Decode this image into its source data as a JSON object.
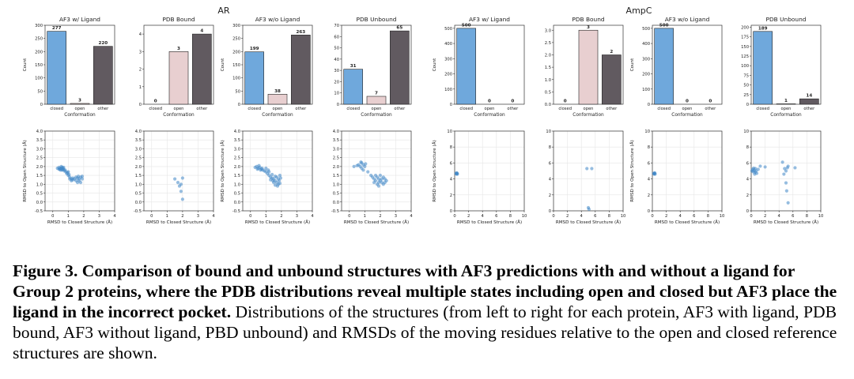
{
  "chart_data": [
    {
      "type": "bar",
      "group": "AR",
      "title": "AF3 w/ Ligand",
      "categories": [
        "closed",
        "open",
        "other"
      ],
      "values": [
        277,
        3,
        220
      ],
      "ylim": [
        0,
        300
      ],
      "yticks": [
        0,
        50,
        100,
        150,
        200,
        250,
        300
      ],
      "ylabel": "Count",
      "xlabel": "Conformation"
    },
    {
      "type": "bar",
      "group": "AR",
      "title": "PDB Bound",
      "categories": [
        "closed",
        "open",
        "other"
      ],
      "values": [
        0,
        3,
        4
      ],
      "ylim": [
        0,
        4.5
      ],
      "yticks": [
        0,
        1,
        2,
        3,
        4
      ],
      "ylabel": "",
      "xlabel": "Conformation"
    },
    {
      "type": "bar",
      "group": "AR",
      "title": "AF3 w/o Ligand",
      "categories": [
        "closed",
        "open",
        "other"
      ],
      "values": [
        199,
        38,
        263
      ],
      "ylim": [
        0,
        300
      ],
      "yticks": [
        0,
        50,
        100,
        150,
        200,
        250,
        300
      ],
      "ylabel": "Count",
      "xlabel": "Conformation"
    },
    {
      "type": "bar",
      "group": "AR",
      "title": "PDB Unbound",
      "categories": [
        "closed",
        "open",
        "other"
      ],
      "values": [
        31,
        7,
        65
      ],
      "ylim": [
        0,
        70
      ],
      "yticks": [
        0,
        10,
        20,
        30,
        40,
        50,
        60,
        70
      ],
      "ylabel": "",
      "xlabel": "Conformation"
    },
    {
      "type": "bar",
      "group": "AmpC",
      "title": "AF3 w/ Ligand",
      "categories": [
        "closed",
        "open",
        "other"
      ],
      "values": [
        500,
        0,
        0
      ],
      "ylim": [
        0,
        520
      ],
      "yticks": [
        0,
        100,
        200,
        300,
        400,
        500
      ],
      "ylabel": "Count",
      "xlabel": "Conformation"
    },
    {
      "type": "bar",
      "group": "AmpC",
      "title": "PDB Bound",
      "categories": [
        "closed",
        "open",
        "other"
      ],
      "values": [
        0,
        3,
        2
      ],
      "ylim": [
        0,
        3.2
      ],
      "yticks": [
        0.0,
        0.5,
        1.0,
        1.5,
        2.0,
        2.5,
        3.0
      ],
      "ylabel": "",
      "xlabel": "Conformation"
    },
    {
      "type": "bar",
      "group": "AmpC",
      "title": "AF3 w/o Ligand",
      "categories": [
        "closed",
        "open",
        "other"
      ],
      "values": [
        500,
        0,
        0
      ],
      "ylim": [
        0,
        520
      ],
      "yticks": [
        0,
        100,
        200,
        300,
        400,
        500
      ],
      "ylabel": "Count",
      "xlabel": "Conformation"
    },
    {
      "type": "bar",
      "group": "AmpC",
      "title": "PDB Unbound",
      "categories": [
        "closed",
        "open",
        "other"
      ],
      "values": [
        189,
        1,
        14
      ],
      "ylim": [
        0,
        205
      ],
      "yticks": [
        0,
        25,
        50,
        75,
        100,
        125,
        150,
        175,
        200
      ],
      "ylabel": "",
      "xlabel": "Conformation"
    },
    {
      "type": "scatter",
      "group": "AR",
      "xlim": [
        -0.5,
        4
      ],
      "ylim": [
        -0.5,
        4
      ],
      "xticks": [
        0,
        1,
        2,
        3,
        4
      ],
      "yticks": [
        -0.5,
        0.0,
        0.5,
        1.0,
        1.5,
        2.0,
        2.5,
        3.0,
        3.5,
        4.0
      ],
      "xlabel": "RMSD to Closed Structure (Å)",
      "ylabel": "RMSD to Open Structure (Å)",
      "points": [
        [
          0.3,
          1.9
        ],
        [
          0.4,
          1.95
        ],
        [
          0.45,
          1.85
        ],
        [
          0.5,
          1.9
        ],
        [
          0.55,
          2.0
        ],
        [
          0.6,
          1.8
        ],
        [
          0.65,
          1.9
        ],
        [
          0.7,
          1.85
        ],
        [
          0.75,
          1.75
        ],
        [
          0.8,
          1.8
        ],
        [
          0.5,
          1.8
        ],
        [
          0.6,
          1.95
        ],
        [
          0.7,
          1.95
        ],
        [
          0.4,
          1.85
        ],
        [
          0.85,
          1.7
        ],
        [
          0.9,
          1.6
        ],
        [
          0.95,
          1.65
        ],
        [
          1.0,
          1.5
        ],
        [
          1.05,
          1.55
        ],
        [
          1.1,
          1.4
        ],
        [
          1.0,
          1.7
        ],
        [
          1.1,
          1.3
        ],
        [
          1.2,
          1.3
        ],
        [
          1.3,
          1.25
        ],
        [
          1.4,
          1.3
        ],
        [
          1.5,
          1.2
        ],
        [
          1.6,
          1.35
        ],
        [
          1.7,
          1.3
        ],
        [
          1.8,
          1.4
        ],
        [
          1.7,
          1.2
        ],
        [
          1.6,
          1.1
        ],
        [
          1.9,
          1.3
        ],
        [
          1.8,
          1.1
        ],
        [
          1.5,
          1.4
        ],
        [
          1.3,
          1.35
        ],
        [
          1.2,
          1.2
        ],
        [
          1.9,
          1.45
        ],
        [
          1.65,
          1.45
        ],
        [
          0.55,
          1.88
        ],
        [
          0.65,
          1.82
        ]
      ]
    },
    {
      "type": "scatter",
      "group": "AR",
      "xlim": [
        -0.5,
        4
      ],
      "ylim": [
        -0.5,
        4
      ],
      "xticks": [
        0,
        1,
        2,
        3,
        4
      ],
      "yticks": [
        -0.5,
        0.0,
        0.5,
        1.0,
        1.5,
        2.0,
        2.5,
        3.0,
        3.5,
        4.0
      ],
      "xlabel": "RMSD to Closed Structure (Å)",
      "ylabel": "",
      "points": [
        [
          1.5,
          1.3
        ],
        [
          1.7,
          1.1
        ],
        [
          1.8,
          0.9
        ],
        [
          1.9,
          1.0
        ],
        [
          2.0,
          1.35
        ],
        [
          1.9,
          0.6
        ],
        [
          2.0,
          0.15
        ]
      ]
    },
    {
      "type": "scatter",
      "group": "AR",
      "xlim": [
        -0.5,
        4
      ],
      "ylim": [
        -0.5,
        4
      ],
      "xticks": [
        0,
        1,
        2,
        3,
        4
      ],
      "yticks": [
        -0.5,
        0.0,
        0.5,
        1.0,
        1.5,
        2.0,
        2.5,
        3.0,
        3.5,
        4.0
      ],
      "xlabel": "RMSD to Closed Structure (Å)",
      "ylabel": "RMSD to Open Structure (Å)",
      "points": [
        [
          0.3,
          1.95
        ],
        [
          0.4,
          2.0
        ],
        [
          0.5,
          1.9
        ],
        [
          0.6,
          1.95
        ],
        [
          0.7,
          1.85
        ],
        [
          0.8,
          1.8
        ],
        [
          0.9,
          1.75
        ],
        [
          1.0,
          1.7
        ],
        [
          0.45,
          1.85
        ],
        [
          0.55,
          2.05
        ],
        [
          0.65,
          1.8
        ],
        [
          0.75,
          1.9
        ],
        [
          1.1,
          1.6
        ],
        [
          1.2,
          1.5
        ],
        [
          1.3,
          1.4
        ],
        [
          1.4,
          1.35
        ],
        [
          1.5,
          1.3
        ],
        [
          1.6,
          1.2
        ],
        [
          1.7,
          1.1
        ],
        [
          1.8,
          1.0
        ],
        [
          1.9,
          1.05
        ],
        [
          1.6,
          0.95
        ],
        [
          1.5,
          1.1
        ],
        [
          1.7,
          1.4
        ],
        [
          1.8,
          1.3
        ],
        [
          1.9,
          1.5
        ],
        [
          1.85,
          1.2
        ],
        [
          1.4,
          1.55
        ],
        [
          1.3,
          1.25
        ],
        [
          1.2,
          1.7
        ],
        [
          1.6,
          1.45
        ],
        [
          1.75,
          0.9
        ],
        [
          1.95,
          1.35
        ],
        [
          1.45,
          1.2
        ],
        [
          1.0,
          1.9
        ],
        [
          1.15,
          1.8
        ]
      ]
    },
    {
      "type": "scatter",
      "group": "AR",
      "xlim": [
        -0.5,
        4
      ],
      "ylim": [
        -0.5,
        4
      ],
      "xticks": [
        0,
        1,
        2,
        3,
        4
      ],
      "yticks": [
        -0.5,
        0.0,
        0.5,
        1.0,
        1.5,
        2.0,
        2.5,
        3.0,
        3.5,
        4.0
      ],
      "xlabel": "RMSD to Closed Structure (Å)",
      "ylabel": "",
      "points": [
        [
          0.3,
          2.0
        ],
        [
          0.5,
          2.05
        ],
        [
          0.6,
          2.1
        ],
        [
          0.7,
          2.0
        ],
        [
          0.8,
          2.2
        ],
        [
          0.9,
          2.1
        ],
        [
          1.0,
          2.0
        ],
        [
          0.8,
          1.9
        ],
        [
          0.9,
          1.8
        ],
        [
          1.2,
          1.7
        ],
        [
          1.4,
          1.5
        ],
        [
          1.5,
          1.4
        ],
        [
          1.6,
          1.3
        ],
        [
          1.7,
          1.2
        ],
        [
          1.8,
          1.4
        ],
        [
          1.9,
          1.3
        ],
        [
          2.0,
          1.2
        ],
        [
          2.1,
          1.1
        ],
        [
          2.2,
          1.0
        ],
        [
          2.3,
          1.3
        ],
        [
          1.8,
          1.0
        ],
        [
          1.9,
          0.9
        ],
        [
          2.0,
          1.5
        ],
        [
          2.2,
          1.4
        ],
        [
          1.7,
          1.5
        ],
        [
          1.6,
          1.1
        ],
        [
          2.1,
          1.3
        ],
        [
          2.3,
          1.1
        ],
        [
          2.4,
          1.2
        ],
        [
          1.9,
          1.1
        ],
        [
          0.75,
          2.25
        ],
        [
          1.05,
          2.15
        ]
      ]
    },
    {
      "type": "scatter",
      "group": "AmpC",
      "xlim": [
        0,
        10
      ],
      "ylim": [
        0,
        10
      ],
      "xticks": [
        0,
        2,
        4,
        6,
        8,
        10
      ],
      "yticks": [
        0,
        2,
        4,
        6,
        8,
        10
      ],
      "xlabel": "RMSD to Closed Structure (Å)",
      "ylabel": "RMSD to Open Structure (Å)",
      "points": [
        [
          0.2,
          4.7
        ],
        [
          0.3,
          4.65
        ],
        [
          0.35,
          4.7
        ],
        [
          0.4,
          4.6
        ],
        [
          0.25,
          4.6
        ],
        [
          0.3,
          4.75
        ]
      ]
    },
    {
      "type": "scatter",
      "group": "AmpC",
      "xlim": [
        0,
        10
      ],
      "ylim": [
        0,
        10
      ],
      "xticks": [
        0,
        2,
        4,
        6,
        8,
        10
      ],
      "yticks": [
        0,
        2,
        4,
        6,
        8,
        10
      ],
      "xlabel": "RMSD to Closed Structure (Å)",
      "ylabel": "",
      "points": [
        [
          4.8,
          5.3
        ],
        [
          5.5,
          5.3
        ],
        [
          5.0,
          0.4
        ],
        [
          5.1,
          0.2
        ]
      ]
    },
    {
      "type": "scatter",
      "group": "AmpC",
      "xlim": [
        0,
        10
      ],
      "ylim": [
        0,
        10
      ],
      "xticks": [
        0,
        2,
        4,
        6,
        8,
        10
      ],
      "yticks": [
        0,
        2,
        4,
        6,
        8,
        10
      ],
      "xlabel": "RMSD to Closed Structure (Å)",
      "ylabel": "RMSD to Open Structure (Å)",
      "points": [
        [
          0.2,
          4.7
        ],
        [
          0.3,
          4.65
        ],
        [
          0.35,
          4.75
        ],
        [
          0.4,
          4.6
        ],
        [
          0.25,
          4.6
        ],
        [
          0.3,
          4.7
        ]
      ]
    },
    {
      "type": "scatter",
      "group": "AmpC",
      "xlim": [
        0,
        10
      ],
      "ylim": [
        0,
        10
      ],
      "xticks": [
        0,
        2,
        4,
        6,
        8,
        10
      ],
      "yticks": [
        0,
        2,
        4,
        6,
        8,
        10
      ],
      "xlabel": "RMSD to Closed Structure (Å)",
      "ylabel": "",
      "points": [
        [
          0.1,
          5.0
        ],
        [
          0.2,
          5.2
        ],
        [
          0.3,
          4.9
        ],
        [
          0.4,
          5.1
        ],
        [
          0.5,
          4.6
        ],
        [
          0.6,
          5.3
        ],
        [
          0.7,
          5.0
        ],
        [
          0.8,
          4.7
        ],
        [
          1.0,
          5.2
        ],
        [
          1.3,
          5.6
        ],
        [
          2.0,
          5.5
        ],
        [
          4.5,
          6.1
        ],
        [
          4.8,
          5.3
        ],
        [
          5.0,
          5.0
        ],
        [
          5.2,
          5.4
        ],
        [
          5.3,
          5.6
        ],
        [
          5.0,
          3.5
        ],
        [
          5.1,
          2.5
        ],
        [
          5.3,
          1.0
        ],
        [
          4.7,
          4.6
        ],
        [
          6.3,
          5.4
        ],
        [
          0.35,
          5.35
        ],
        [
          0.55,
          4.85
        ]
      ]
    }
  ],
  "figure": {
    "group_labels": [
      "AR",
      "AmpC"
    ],
    "colors": {
      "closed": "#6fa8dc",
      "open": "#e8cfd0",
      "other": "#615a60",
      "scatter": "#3f86c6"
    }
  },
  "caption": {
    "bold": "Figure 3.  Comparison of bound and unbound structures with AF3 predictions with and without a ligand for Group 2 proteins, where the PDB distributions reveal multiple states including open and closed but AF3 place the ligand in the incorrect pocket.",
    "text": "  Distributions of the structures (from left to right for each protein, AF3 with ligand, PDB bound, AF3 without ligand, PBD unbound) and RMSDs of the moving residues relative to the open and closed reference structures are shown."
  }
}
